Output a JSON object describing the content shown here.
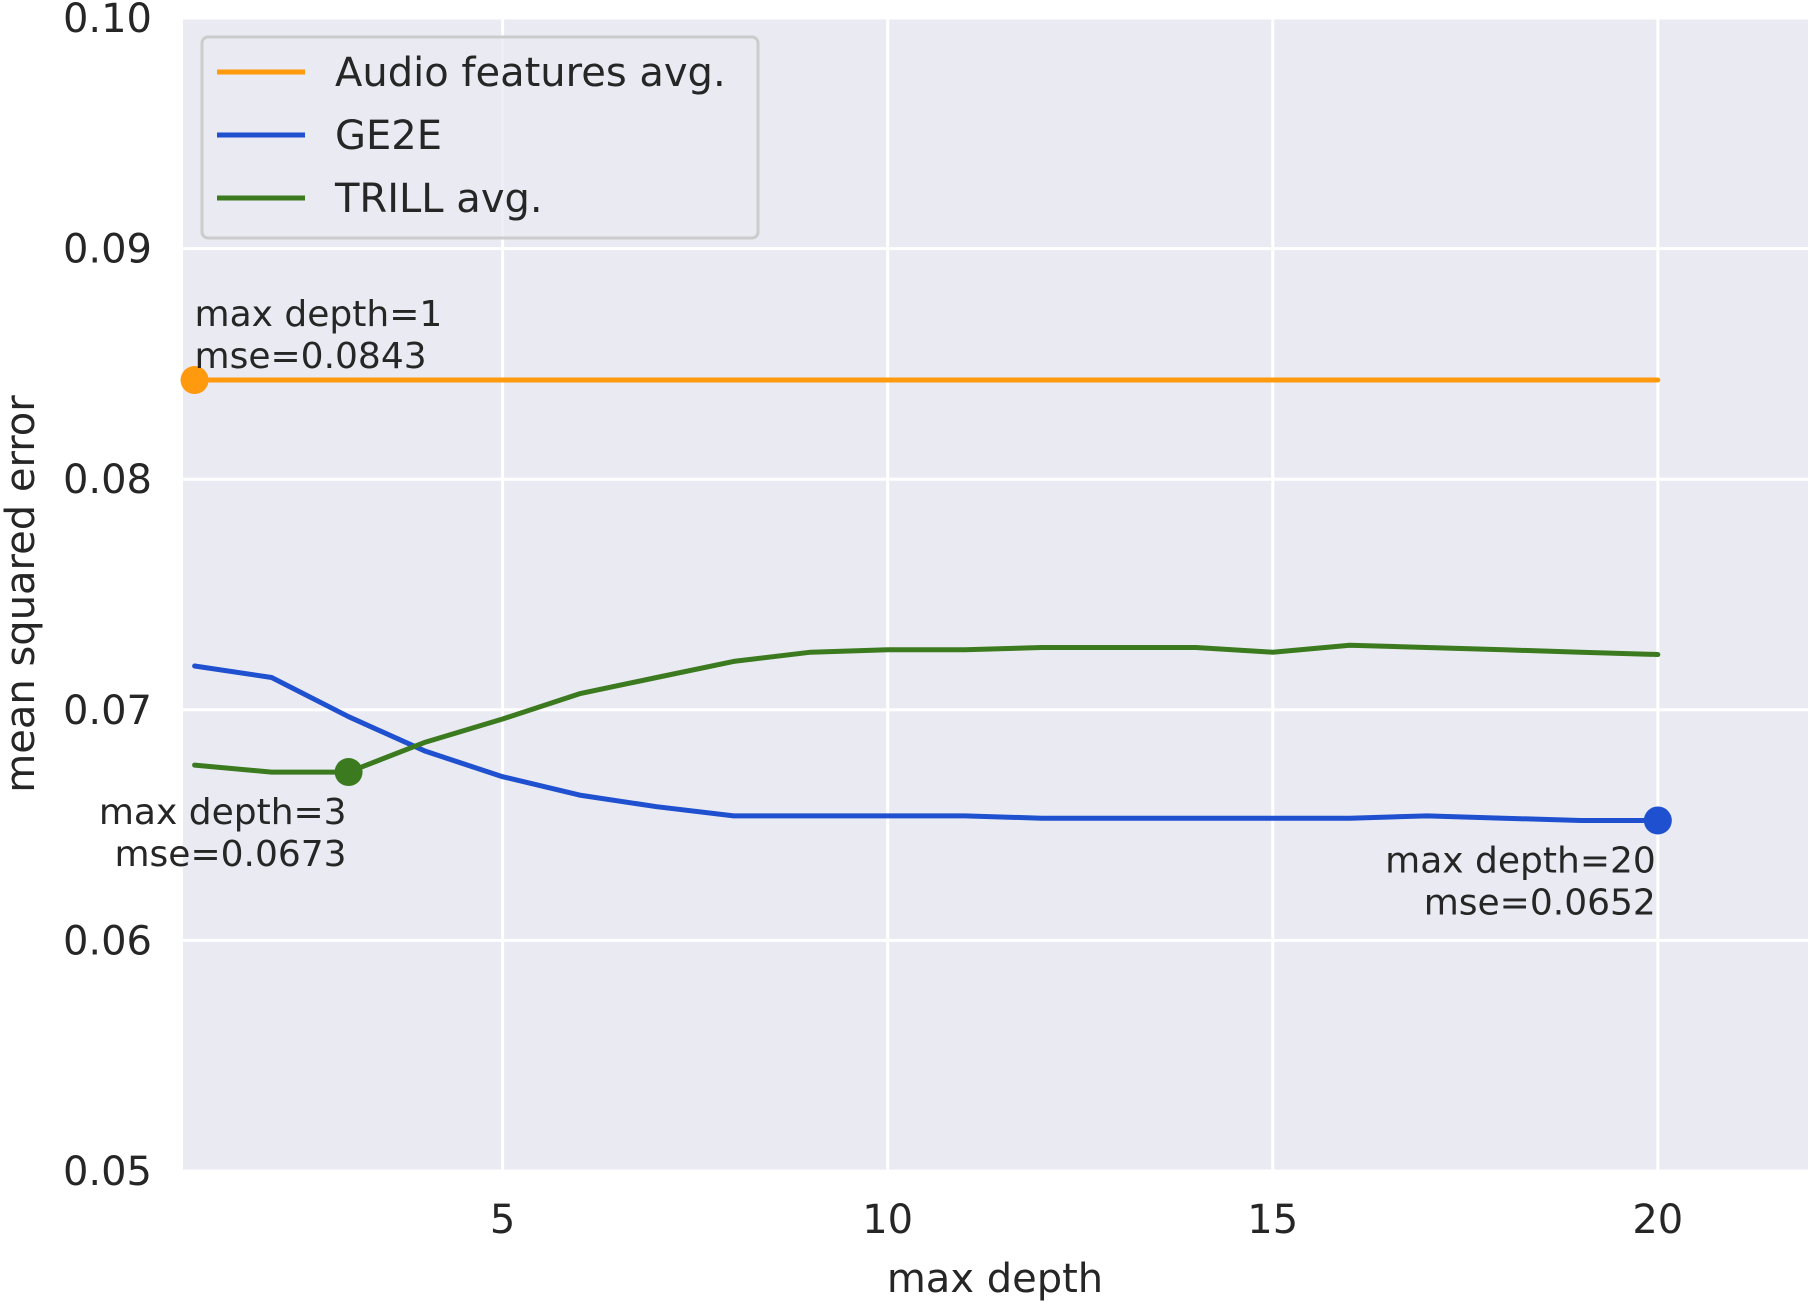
{
  "chart_data": {
    "type": "line",
    "xlabel": "max depth",
    "ylabel": "mean squared error",
    "xlim": [
      0.85,
      21.95
    ],
    "ylim": [
      0.05,
      0.1
    ],
    "xticks": [
      5,
      10,
      15,
      20
    ],
    "yticks": [
      0.05,
      0.06,
      0.07,
      0.08,
      0.09,
      0.1
    ],
    "xtick_labels": [
      "5",
      "10",
      "15",
      "20"
    ],
    "ytick_labels": [
      "0.05",
      "0.06",
      "0.07",
      "0.08",
      "0.09",
      "0.10"
    ],
    "grid": true,
    "legend_position": "top-left",
    "x": [
      1,
      2,
      3,
      4,
      5,
      6,
      7,
      8,
      9,
      10,
      11,
      12,
      13,
      14,
      15,
      16,
      17,
      18,
      19,
      20
    ],
    "series": [
      {
        "name": "Audio features avg.",
        "color": "#ff9a0e",
        "values": [
          0.0843,
          0.0843,
          0.0843,
          0.0843,
          0.0843,
          0.0843,
          0.0843,
          0.0843,
          0.0843,
          0.0843,
          0.0843,
          0.0843,
          0.0843,
          0.0843,
          0.0843,
          0.0843,
          0.0843,
          0.0843,
          0.0843,
          0.0843
        ]
      },
      {
        "name": "GE2E",
        "color": "#1f50cf",
        "values": [
          0.0719,
          0.0714,
          0.0697,
          0.0682,
          0.0671,
          0.0663,
          0.0658,
          0.0654,
          0.0654,
          0.0654,
          0.0654,
          0.0653,
          0.0653,
          0.0653,
          0.0653,
          0.0653,
          0.0654,
          0.0653,
          0.0652,
          0.0652
        ]
      },
      {
        "name": "TRILL avg.",
        "color": "#3b7a1f",
        "values": [
          0.0676,
          0.0673,
          0.0673,
          0.0686,
          0.0696,
          0.0707,
          0.0714,
          0.0721,
          0.0725,
          0.0726,
          0.0726,
          0.0727,
          0.0727,
          0.0727,
          0.0725,
          0.0728,
          0.0727,
          0.0726,
          0.0725,
          0.0724
        ]
      }
    ],
    "annotations": [
      {
        "series": 0,
        "x": 1,
        "y": 0.0843,
        "lines": [
          "max depth=1",
          "mse=0.0843"
        ],
        "placement": "above",
        "align": "start"
      },
      {
        "series": 2,
        "x": 3,
        "y": 0.0673,
        "lines": [
          "max depth=3",
          "mse=0.0673"
        ],
        "placement": "below",
        "align": "end"
      },
      {
        "series": 1,
        "x": 20,
        "y": 0.0652,
        "lines": [
          "max depth=20",
          "mse=0.0652"
        ],
        "placement": "below",
        "align": "end"
      }
    ]
  }
}
